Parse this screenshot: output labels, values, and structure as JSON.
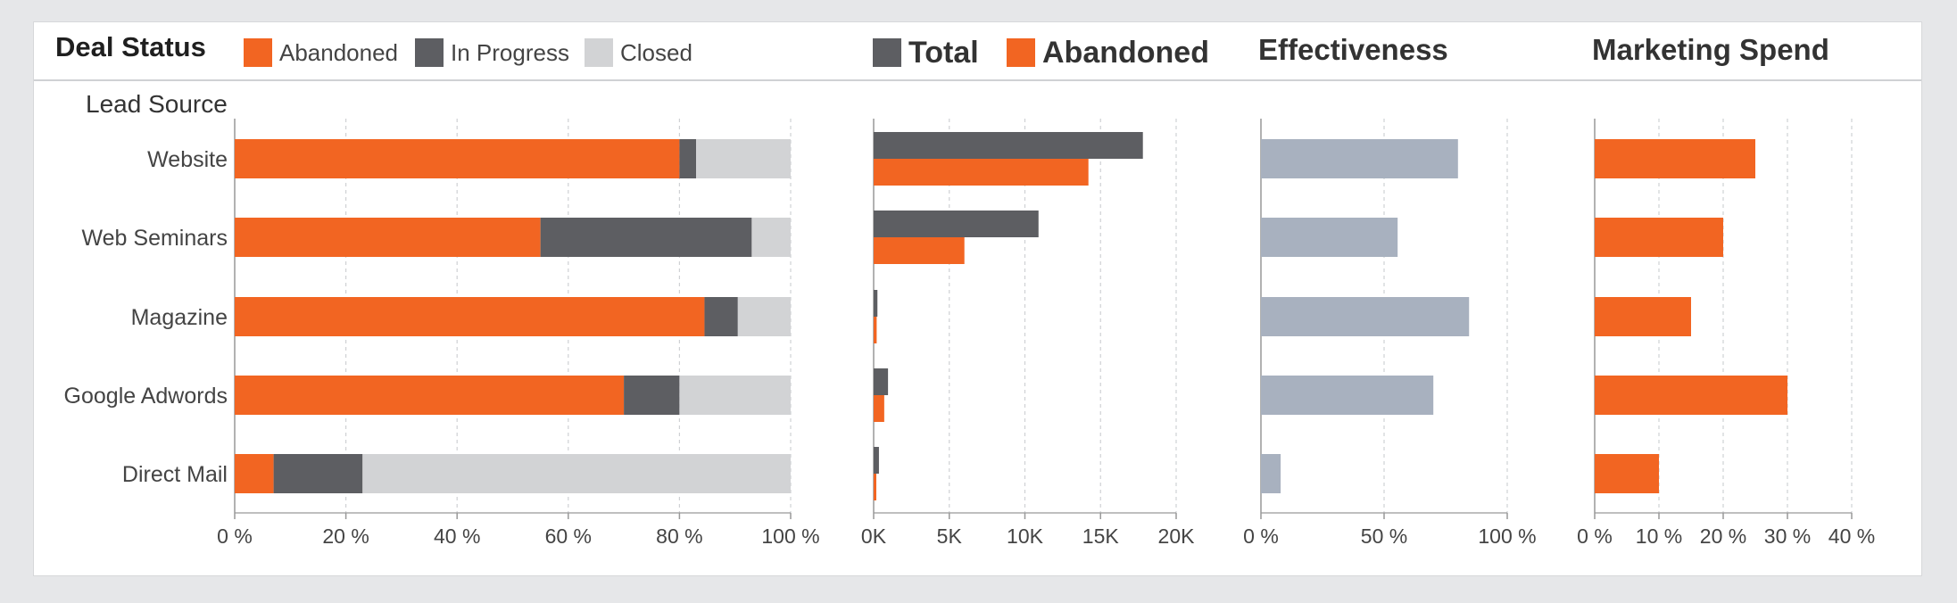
{
  "colors": {
    "abandoned": "#f26522",
    "in_progress": "#5d5e62",
    "closed": "#d2d3d5",
    "effectiveness": "#a8b1bf",
    "grid": "#cfd1d4",
    "axis": "#999999"
  },
  "header": {
    "title": "Deal Status",
    "legend_status": [
      "Abandoned",
      "In Progress",
      "Closed"
    ],
    "legend_count": [
      "Total",
      "Abandoned"
    ],
    "effectiveness_title": "Effectiveness",
    "spend_title": "Marketing Spend"
  },
  "yaxis_title": "Lead Source",
  "chart_data": [
    {
      "type": "bar",
      "orientation": "horizontal",
      "stacked": true,
      "title": "Deal Status",
      "ylabel": "Lead Source",
      "categories": [
        "Website",
        "Web Seminars",
        "Magazine",
        "Google Adwords",
        "Direct Mail"
      ],
      "series": [
        {
          "name": "Abandoned",
          "values": [
            80,
            55,
            84.5,
            70,
            7
          ]
        },
        {
          "name": "In Progress",
          "values": [
            3,
            38,
            6,
            10,
            16
          ]
        },
        {
          "name": "Closed",
          "values": [
            17,
            7,
            9.5,
            20,
            77
          ]
        }
      ],
      "xlim": [
        0,
        100
      ],
      "x_ticks": [
        "0 %",
        "20 %",
        "40 %",
        "60 %",
        "80 %",
        "100 %"
      ],
      "grid": true
    },
    {
      "type": "bar",
      "orientation": "horizontal",
      "categories": [
        "Website",
        "Web Seminars",
        "Magazine",
        "Google Adwords",
        "Direct Mail"
      ],
      "series": [
        {
          "name": "Total",
          "values": [
            17800,
            10900,
            250,
            950,
            350
          ]
        },
        {
          "name": "Abandoned",
          "values": [
            14200,
            6000,
            200,
            700,
            100
          ]
        }
      ],
      "xlim": [
        0,
        20000
      ],
      "x_ticks": [
        "0K",
        "5K",
        "10K",
        "15K",
        "20K"
      ],
      "grid": true
    },
    {
      "type": "bar",
      "orientation": "horizontal",
      "title": "Effectiveness",
      "categories": [
        "Website",
        "Web Seminars",
        "Magazine",
        "Google Adwords",
        "Direct Mail"
      ],
      "values": [
        80,
        55.5,
        84.5,
        70,
        8
      ],
      "xlim": [
        0,
        100
      ],
      "x_ticks": [
        "0 %",
        "50 %",
        "100 %"
      ],
      "grid": true
    },
    {
      "type": "bar",
      "orientation": "horizontal",
      "title": "Marketing Spend",
      "categories": [
        "Website",
        "Web Seminars",
        "Magazine",
        "Google Adwords",
        "Direct Mail"
      ],
      "values": [
        25,
        20,
        15,
        30,
        10
      ],
      "xlim": [
        0,
        40
      ],
      "x_ticks": [
        "0 %",
        "10 %",
        "20 %",
        "30 %",
        "40 %"
      ],
      "grid": true
    }
  ]
}
